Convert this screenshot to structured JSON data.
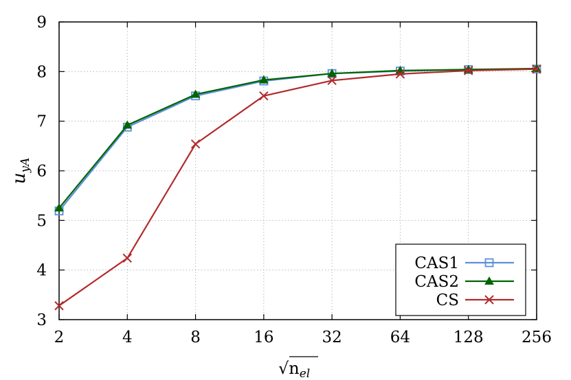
{
  "chart_data": {
    "type": "line",
    "x_scale": "log2",
    "categories": [
      "2",
      "4",
      "8",
      "16",
      "32",
      "64",
      "128",
      "256"
    ],
    "x": [
      2,
      4,
      8,
      16,
      32,
      64,
      128,
      256
    ],
    "ylim": [
      3,
      9
    ],
    "yticks": [
      "3",
      "4",
      "5",
      "6",
      "7",
      "8",
      "9"
    ],
    "grid": true,
    "xlabel": "√n",
    "xlabel_sub": "el",
    "ylabel": "u",
    "ylabel_sub": "yA",
    "legend_position": "bottom-right",
    "series": [
      {
        "name": "CAS1",
        "color": "#5b8fd9",
        "marker": "open-square",
        "values": [
          5.19,
          6.88,
          7.51,
          7.81,
          7.96,
          8.01,
          8.04,
          8.05
        ]
      },
      {
        "name": "CAS2",
        "color": "#006400",
        "marker": "filled-triangle",
        "values": [
          5.25,
          6.92,
          7.54,
          7.83,
          7.96,
          8.02,
          8.04,
          8.06
        ]
      },
      {
        "name": "CS",
        "color": "#b22a2a",
        "marker": "cross",
        "values": [
          3.28,
          4.24,
          6.54,
          7.51,
          7.82,
          7.95,
          8.02,
          8.05
        ]
      }
    ]
  }
}
